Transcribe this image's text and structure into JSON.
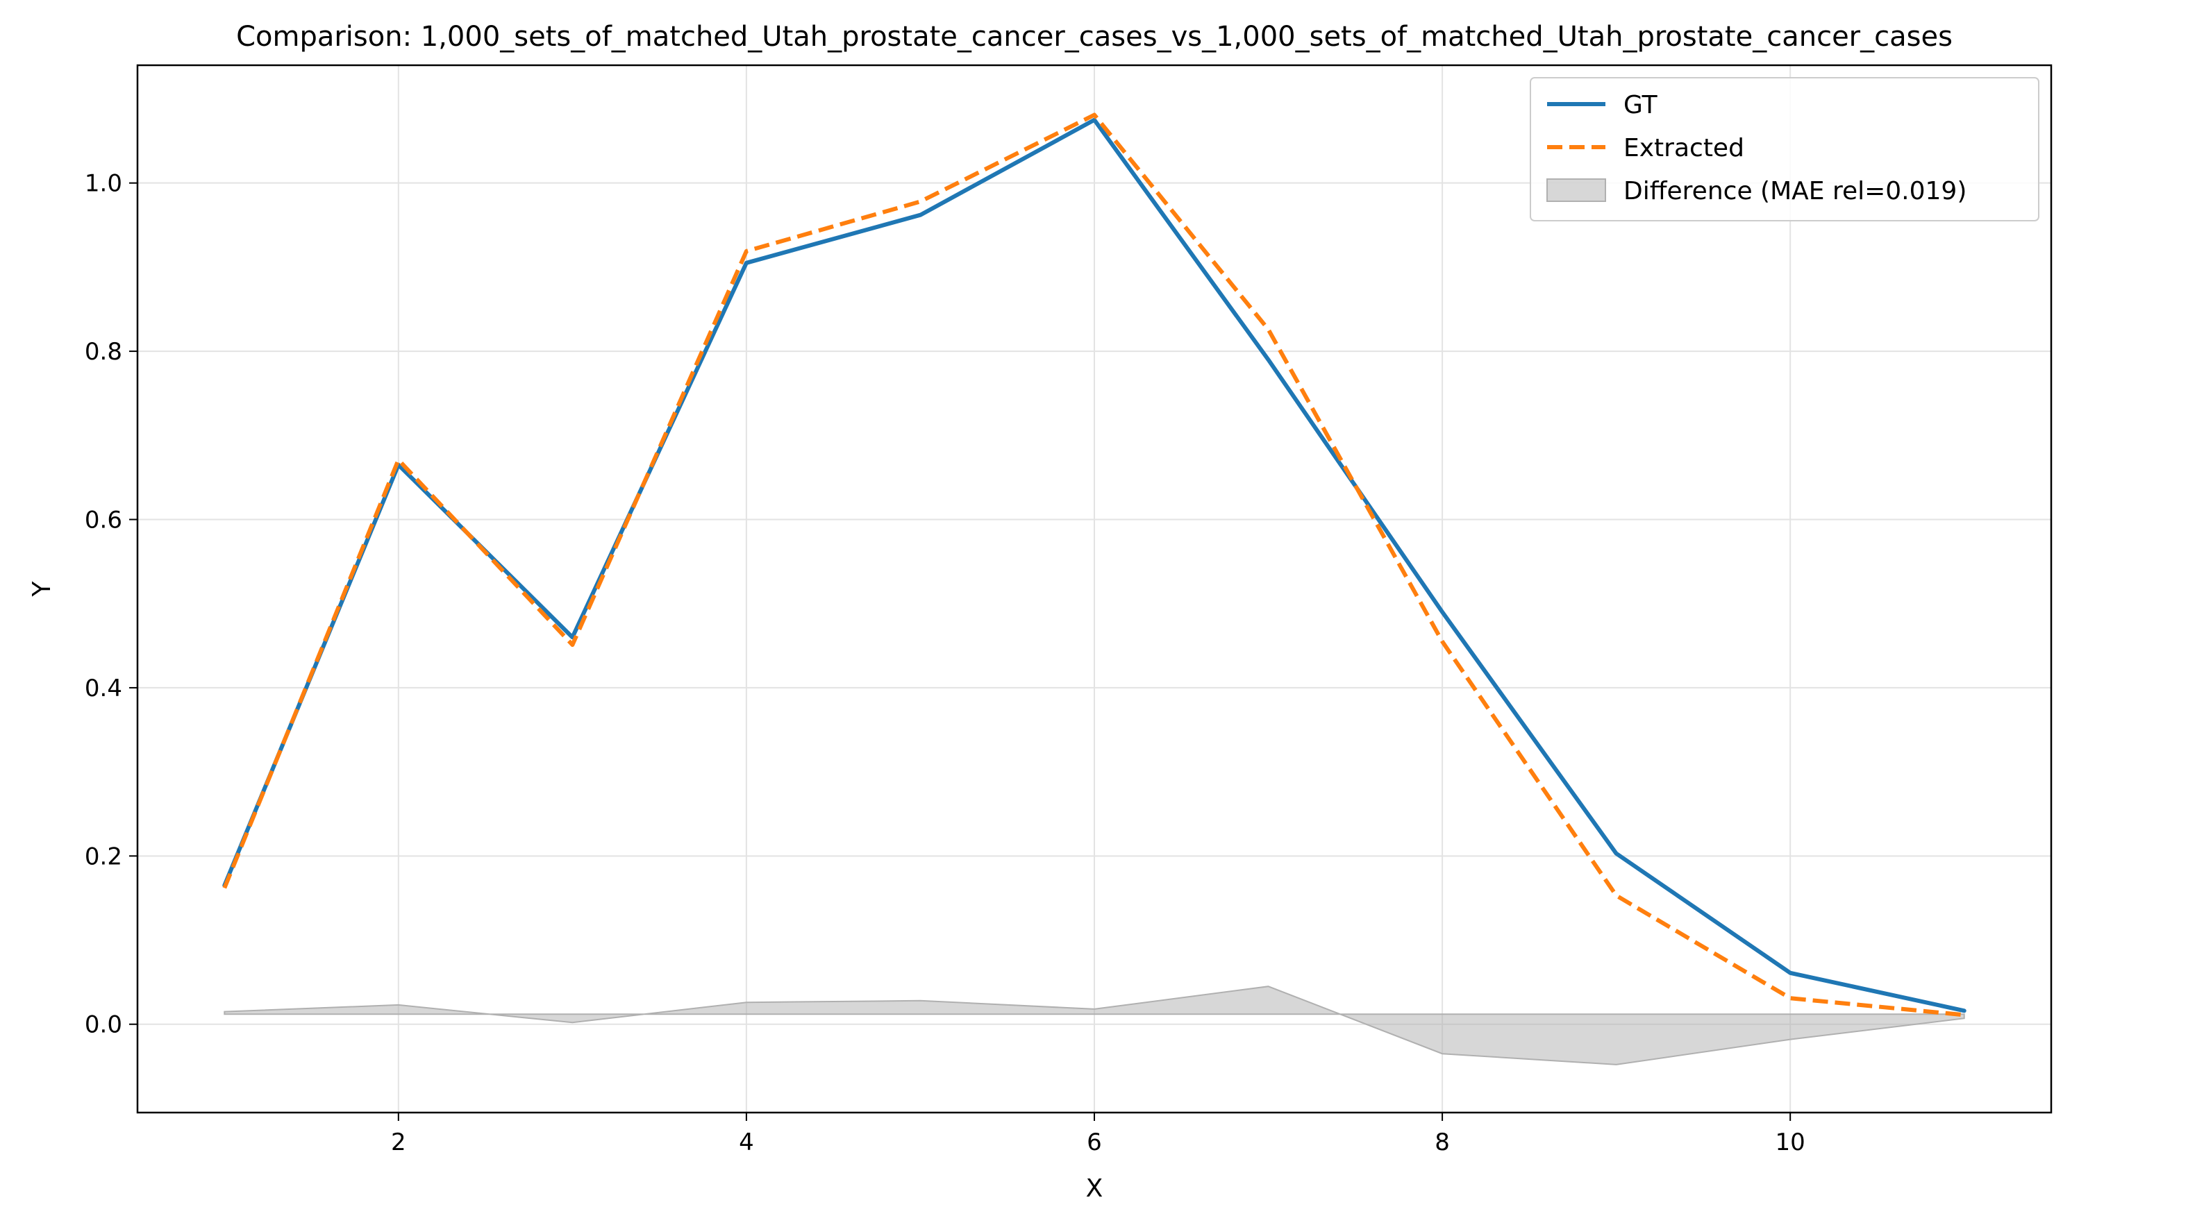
{
  "chart_data": {
    "type": "line",
    "title": "Comparison: 1,000_sets_of_matched_Utah_prostate_cancer_cases_vs_1,000_sets_of_matched_Utah_prostate_cancer_cases",
    "xlabel": "X",
    "ylabel": "Y",
    "xlim": [
      0.5,
      11.5
    ],
    "ylim": [
      -0.105,
      1.14
    ],
    "grid": true,
    "legend_position": "top-right",
    "x_ticks": [
      2,
      4,
      6,
      8,
      10
    ],
    "x_tick_labels": [
      "2",
      "4",
      "6",
      "8",
      "10"
    ],
    "y_ticks": [
      0.0,
      0.2,
      0.4,
      0.6,
      0.8,
      1.0
    ],
    "y_tick_labels": [
      "0.0",
      "0.2",
      "0.4",
      "0.6",
      "0.8",
      "1.0"
    ],
    "x": [
      1,
      2,
      3,
      4,
      5,
      6,
      7,
      8,
      9,
      10,
      11
    ],
    "series": [
      {
        "name": "GT",
        "style": "solid",
        "color": "#1f77b4",
        "values": [
          0.165,
          0.665,
          0.46,
          0.905,
          0.962,
          1.075,
          0.79,
          0.49,
          0.203,
          0.061,
          0.016
        ]
      },
      {
        "name": "Extracted",
        "style": "dashed",
        "color": "#ff7f0e",
        "values": [
          0.162,
          0.671,
          0.451,
          0.919,
          0.978,
          1.081,
          0.826,
          0.455,
          0.153,
          0.031,
          0.011
        ]
      }
    ],
    "difference": {
      "name": "Difference (MAE rel=0.019)",
      "color": "#b0b0b0",
      "baseline": 0.012,
      "values": [
        0.015,
        0.023,
        0.002,
        0.026,
        0.028,
        0.018,
        0.045,
        -0.035,
        -0.048,
        -0.018,
        0.007
      ]
    }
  }
}
